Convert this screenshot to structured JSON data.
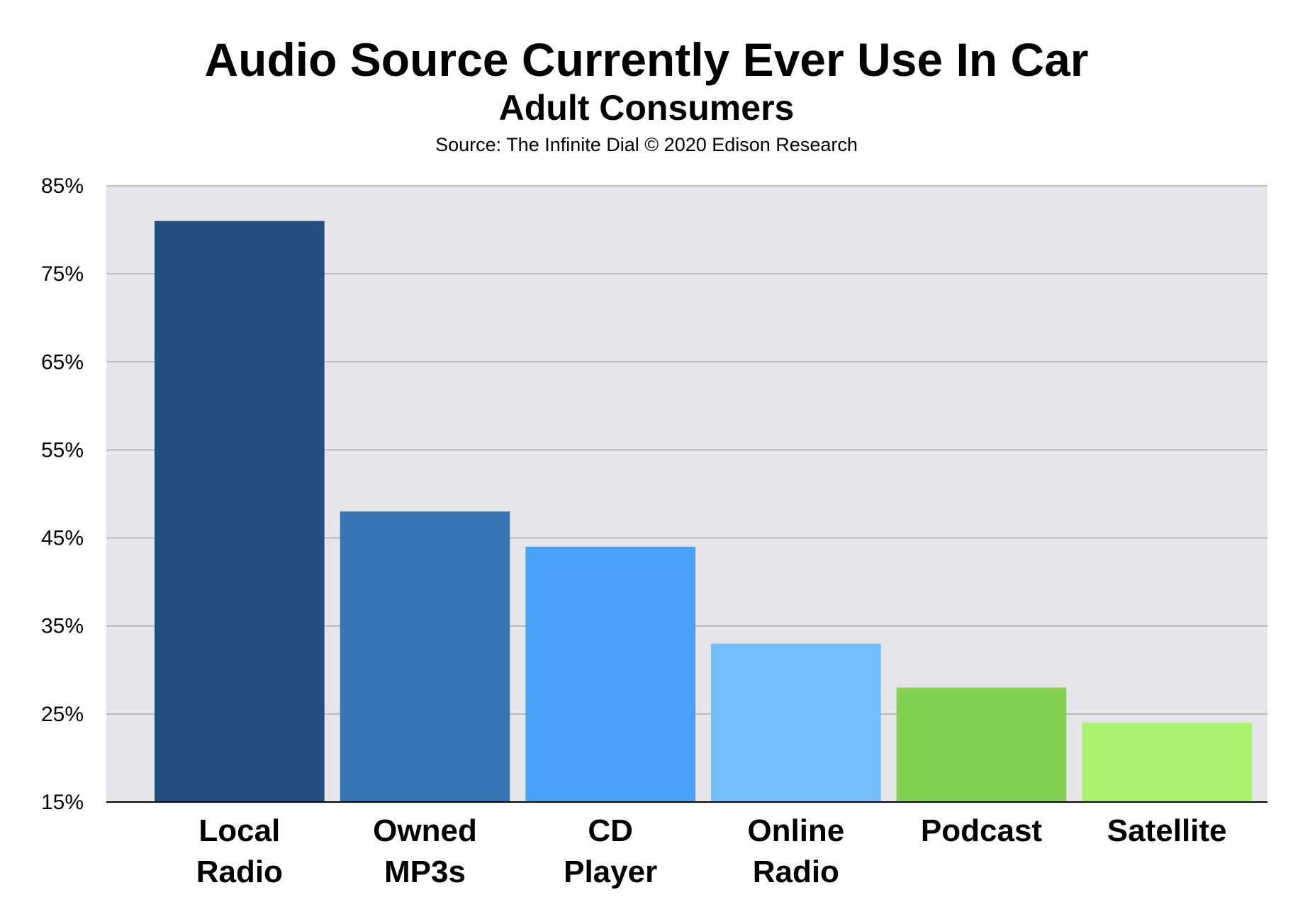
{
  "chart_data": {
    "type": "bar",
    "title": "Audio Source Currently Ever Use In Car",
    "subtitle": "Adult Consumers",
    "source": "Source: The Infinite Dial © 2020 Edison Research",
    "categories": [
      [
        "Local",
        "Radio"
      ],
      [
        "Owned",
        "MP3s"
      ],
      [
        "CD",
        "Player"
      ],
      [
        "Online",
        "Radio"
      ],
      [
        "Podcast"
      ],
      [
        "Satellite"
      ]
    ],
    "values": [
      81,
      48,
      44,
      33,
      28,
      24
    ],
    "colors": [
      "#214f7e",
      "#3676b5",
      "#4aa1f6",
      "#73bdf8",
      "#82d153",
      "#a8f46c"
    ],
    "ylim": [
      15,
      85
    ],
    "yticks": [
      "15%",
      "25%",
      "35%",
      "45%",
      "55%",
      "65%",
      "75%",
      "85%"
    ],
    "ytick_values": [
      15,
      25,
      35,
      45,
      55,
      65,
      75,
      85
    ],
    "grid": true,
    "plot_background": "#e6e5e8"
  }
}
